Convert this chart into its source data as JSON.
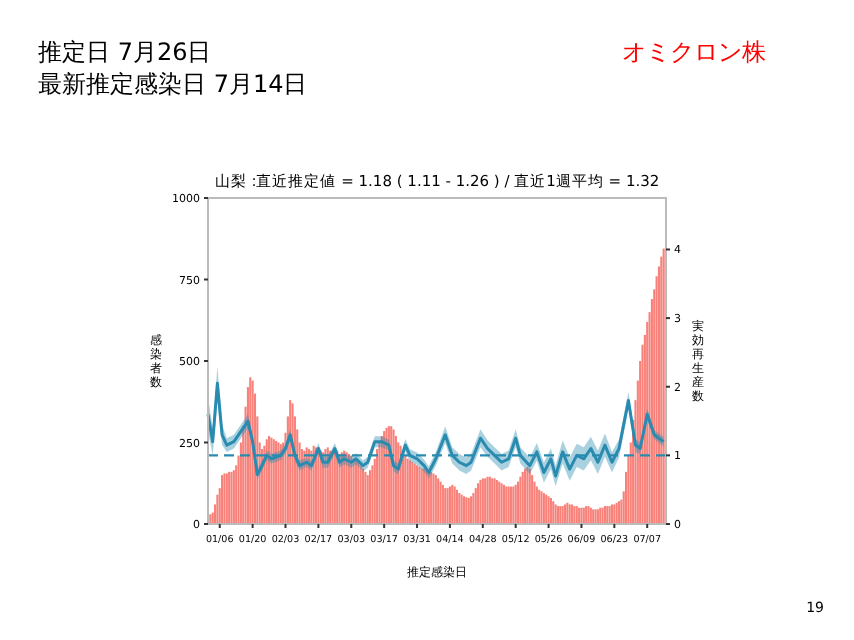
{
  "chart_data": {
    "type": "bar",
    "title": "山梨 :直近推定値 = 1.18 ( 1.11 - 1.26 ) / 直近1週平均 = 1.32",
    "xlabel": "推定感染日",
    "ylabel": "感染者数",
    "y2label": "実効再生産数",
    "annotations": [
      "推定日  7月26日",
      "最新推定感染日  7月14日",
      "オミクロン株",
      "19"
    ],
    "xlim": [
      "--01-01",
      "--07-15"
    ],
    "xticks": [
      {
        "value": "--01-06",
        "label": "01/06"
      },
      {
        "value": "--01-20",
        "label": "01/20"
      },
      {
        "value": "--02-03",
        "label": "02/03"
      },
      {
        "value": "--02-17",
        "label": "02/17"
      },
      {
        "value": "--03-03",
        "label": "03/03"
      },
      {
        "value": "--03-17",
        "label": "03/17"
      },
      {
        "value": "--03-31",
        "label": "03/31"
      },
      {
        "value": "--04-14",
        "label": "04/14"
      },
      {
        "value": "--04-28",
        "label": "04/28"
      },
      {
        "value": "--05-12",
        "label": "05/12"
      },
      {
        "value": "--05-26",
        "label": "05/26"
      },
      {
        "value": "--06-09",
        "label": "06/09"
      },
      {
        "value": "--06-23",
        "label": "06/23"
      },
      {
        "value": "--07-07",
        "label": "07/07"
      }
    ],
    "ylim": [
      0,
      1000
    ],
    "yticks": [
      0,
      250,
      500,
      750,
      1000
    ],
    "y2lim": [
      0,
      4.75
    ],
    "y2ticks": [
      0,
      1,
      2,
      3,
      4
    ],
    "series": [
      {
        "color": "#f8817a",
        "x": [
          "--01-02",
          "--01-03",
          "--01-04",
          "--01-05",
          "--01-06",
          "--01-07",
          "--01-08",
          "--01-09",
          "--01-10",
          "--01-11",
          "--01-12",
          "--01-13",
          "--01-14",
          "--01-15",
          "--01-16",
          "--01-17",
          "--01-18",
          "--01-19",
          "--01-20",
          "--01-21",
          "--01-22",
          "--01-23",
          "--01-24",
          "--01-25",
          "--01-26",
          "--01-27",
          "--01-28",
          "--01-29",
          "--01-30",
          "--01-31",
          "--02-01",
          "--02-02",
          "--02-03",
          "--02-04",
          "--02-05",
          "--02-06",
          "--02-07",
          "--02-08",
          "--02-09",
          "--02-10",
          "--02-11",
          "--02-12",
          "--02-13",
          "--02-14",
          "--02-15",
          "--02-16",
          "--02-17",
          "--02-18",
          "--02-19",
          "--02-20",
          "--02-21",
          "--02-22",
          "--02-23",
          "--02-24",
          "--02-25",
          "--02-26",
          "--02-27",
          "--02-28",
          "--03-01",
          "--03-02",
          "--03-03",
          "--03-04",
          "--03-05",
          "--03-06",
          "--03-07",
          "--03-08",
          "--03-09",
          "--03-10",
          "--03-11",
          "--03-12",
          "--03-13",
          "--03-14",
          "--03-15",
          "--03-16",
          "--03-17",
          "--03-18",
          "--03-19",
          "--03-20",
          "--03-21",
          "--03-22",
          "--03-23",
          "--03-24",
          "--03-25",
          "--03-26",
          "--03-27",
          "--03-28",
          "--03-29",
          "--03-30",
          "--03-31",
          "--04-01",
          "--04-02",
          "--04-03",
          "--04-04",
          "--04-05",
          "--04-06",
          "--04-07",
          "--04-08",
          "--04-09",
          "--04-10",
          "--04-11",
          "--04-12",
          "--04-13",
          "--04-14",
          "--04-15",
          "--04-16",
          "--04-17",
          "--04-18",
          "--04-19",
          "--04-20",
          "--04-21",
          "--04-22",
          "--04-23",
          "--04-24",
          "--04-25",
          "--04-26",
          "--04-27",
          "--04-28",
          "--04-29",
          "--04-30",
          "--05-01",
          "--05-02",
          "--05-03",
          "--05-04",
          "--05-05",
          "--05-06",
          "--05-07",
          "--05-08",
          "--05-09",
          "--05-10",
          "--05-11",
          "--05-12",
          "--05-13",
          "--05-14",
          "--05-15",
          "--05-16",
          "--05-17",
          "--05-18",
          "--05-19",
          "--05-20",
          "--05-21",
          "--05-22",
          "--05-23",
          "--05-24",
          "--05-25",
          "--05-26",
          "--05-27",
          "--05-28",
          "--05-29",
          "--05-30",
          "--05-31",
          "--06-01",
          "--06-02",
          "--06-03",
          "--06-04",
          "--06-05",
          "--06-06",
          "--06-07",
          "--06-08",
          "--06-09",
          "--06-10",
          "--06-11",
          "--06-12",
          "--06-13",
          "--06-14",
          "--06-15",
          "--06-16",
          "--06-17",
          "--06-18",
          "--06-19",
          "--06-20",
          "--06-21",
          "--06-22",
          "--06-23",
          "--06-24",
          "--06-25",
          "--06-26",
          "--06-27",
          "--06-28",
          "--06-29",
          "--06-30",
          "--07-01",
          "--07-02",
          "--07-03",
          "--07-04",
          "--07-05",
          "--07-06",
          "--07-07",
          "--07-08",
          "--07-09",
          "--07-10",
          "--07-11",
          "--07-12",
          "--07-13",
          "--07-14"
        ],
        "values": [
          30,
          35,
          60,
          90,
          110,
          150,
          155,
          155,
          160,
          160,
          165,
          180,
          210,
          250,
          300,
          360,
          420,
          450,
          440,
          400,
          330,
          250,
          230,
          240,
          260,
          270,
          265,
          260,
          255,
          250,
          245,
          250,
          280,
          330,
          380,
          370,
          330,
          290,
          250,
          230,
          225,
          235,
          230,
          225,
          240,
          235,
          230,
          225,
          220,
          230,
          235,
          225,
          220,
          230,
          225,
          215,
          220,
          225,
          220,
          215,
          210,
          200,
          195,
          190,
          180,
          170,
          160,
          150,
          165,
          180,
          200,
          230,
          255,
          270,
          285,
          295,
          300,
          300,
          290,
          270,
          250,
          240,
          225,
          210,
          200,
          195,
          190,
          185,
          180,
          175,
          170,
          170,
          165,
          160,
          160,
          155,
          150,
          140,
          130,
          120,
          110,
          110,
          115,
          120,
          115,
          105,
          95,
          90,
          85,
          82,
          80,
          85,
          95,
          110,
          125,
          135,
          140,
          140,
          145,
          145,
          140,
          140,
          135,
          130,
          125,
          120,
          115,
          115,
          115,
          115,
          120,
          130,
          145,
          160,
          170,
          175,
          170,
          150,
          130,
          115,
          105,
          100,
          95,
          90,
          85,
          80,
          70,
          60,
          55,
          55,
          55,
          60,
          65,
          60,
          60,
          55,
          55,
          50,
          50,
          50,
          55,
          55,
          50,
          45,
          45,
          45,
          50,
          50,
          55,
          55,
          55,
          60,
          60,
          65,
          70,
          75,
          100,
          160,
          210,
          250,
          320,
          380,
          440,
          500,
          550,
          580,
          620,
          650,
          690,
          720,
          760,
          790,
          820,
          845
        ]
      },
      {
        "type": "line",
        "axis": "y2",
        "color": "#2a8bb0",
        "x": [
          "--01-01",
          "--01-03",
          "--01-05",
          "--01-07",
          "--01-09",
          "--01-12",
          "--01-14",
          "--01-18",
          "--01-20",
          "--01-22",
          "--01-24",
          "--01-26",
          "--01-28",
          "--02-01",
          "--02-03",
          "--02-05",
          "--02-07",
          "--02-09",
          "--02-12",
          "--02-14",
          "--02-17",
          "--02-19",
          "--02-21",
          "--02-24",
          "--02-26",
          "--02-28",
          "--03-03",
          "--03-05",
          "--03-08",
          "--03-10",
          "--03-13",
          "--03-16",
          "--03-19",
          "--03-21",
          "--03-23",
          "--03-26",
          "--03-28",
          "--03-31",
          "--04-03",
          "--04-05",
          "--04-08",
          "--04-12",
          "--04-15",
          "--04-18",
          "--04-21",
          "--04-23",
          "--04-27",
          "--04-30",
          "--05-03",
          "--05-06",
          "--05-09",
          "--05-12",
          "--05-14",
          "--05-18",
          "--05-21",
          "--05-24",
          "--05-27",
          "--05-29",
          "--06-01",
          "--06-04",
          "--06-07",
          "--06-10",
          "--06-13",
          "--06-16",
          "--06-19",
          "--06-22",
          "--06-25",
          "--06-29",
          "--07-02",
          "--07-04",
          "--07-07",
          "--07-10",
          "--07-12",
          "--07-14"
        ],
        "values": [
          1.6,
          1.2,
          2.05,
          1.3,
          1.15,
          1.2,
          1.3,
          1.5,
          1.2,
          0.72,
          0.85,
          1.0,
          0.95,
          1.0,
          1.1,
          1.3,
          1.0,
          0.85,
          0.9,
          0.85,
          1.1,
          0.9,
          0.9,
          1.1,
          0.9,
          0.95,
          0.9,
          0.95,
          0.85,
          0.9,
          1.2,
          1.2,
          1.15,
          0.85,
          0.8,
          1.15,
          1.0,
          0.95,
          0.85,
          0.75,
          0.95,
          1.3,
          1.0,
          0.9,
          0.85,
          0.9,
          1.25,
          1.1,
          1.0,
          0.9,
          0.95,
          1.25,
          1.0,
          0.85,
          1.05,
          0.75,
          0.95,
          0.7,
          1.05,
          0.8,
          1.0,
          0.95,
          1.1,
          0.9,
          1.15,
          0.9,
          1.1,
          1.8,
          1.15,
          1.1,
          1.6,
          1.3,
          1.25,
          1.2
        ],
        "lower": [
          1.35,
          1.0,
          1.8,
          1.15,
          1.05,
          1.1,
          1.2,
          1.4,
          1.12,
          0.65,
          0.78,
          0.93,
          0.88,
          0.93,
          1.03,
          1.22,
          0.93,
          0.78,
          0.83,
          0.78,
          1.02,
          0.82,
          0.82,
          1.02,
          0.82,
          0.87,
          0.82,
          0.87,
          0.77,
          0.82,
          1.12,
          1.12,
          1.07,
          0.77,
          0.72,
          1.06,
          0.91,
          0.86,
          0.76,
          0.66,
          0.85,
          1.18,
          0.88,
          0.78,
          0.73,
          0.78,
          1.12,
          0.98,
          0.88,
          0.78,
          0.83,
          1.12,
          0.88,
          0.73,
          0.92,
          0.6,
          0.8,
          0.55,
          0.88,
          0.63,
          0.83,
          0.78,
          0.93,
          0.73,
          0.98,
          0.75,
          0.97,
          1.68,
          1.05,
          1.02,
          1.52,
          1.23,
          1.18,
          1.13
        ],
        "upper": [
          1.85,
          1.4,
          2.3,
          1.45,
          1.25,
          1.3,
          1.4,
          1.6,
          1.28,
          0.8,
          0.92,
          1.07,
          1.02,
          1.07,
          1.17,
          1.38,
          1.07,
          0.92,
          0.97,
          0.92,
          1.18,
          0.98,
          0.98,
          1.18,
          0.98,
          1.03,
          0.98,
          1.03,
          0.93,
          0.98,
          1.28,
          1.28,
          1.23,
          0.93,
          0.88,
          1.24,
          1.09,
          1.04,
          0.94,
          0.84,
          1.05,
          1.42,
          1.12,
          1.02,
          0.97,
          1.02,
          1.38,
          1.22,
          1.12,
          1.02,
          1.07,
          1.38,
          1.12,
          0.97,
          1.18,
          0.9,
          1.1,
          0.85,
          1.22,
          0.97,
          1.17,
          1.12,
          1.27,
          1.07,
          1.32,
          1.05,
          1.23,
          1.92,
          1.25,
          1.18,
          1.68,
          1.37,
          1.32,
          1.27
        ]
      }
    ],
    "ref_lines": [
      {
        "axis": "y2",
        "value": 1,
        "line_style": "dashed",
        "color": "#2a8bb0"
      }
    ]
  }
}
